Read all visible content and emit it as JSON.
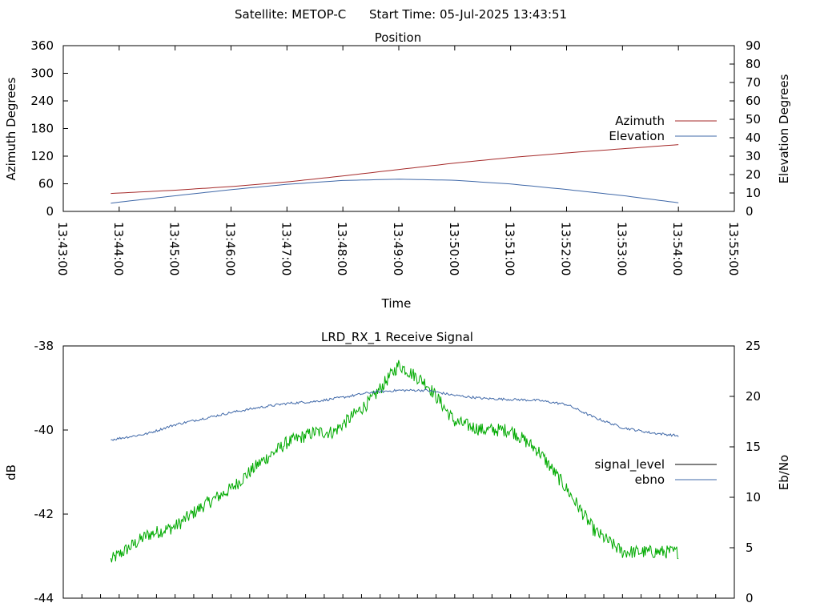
{
  "header": {
    "satellite": "Satellite: METOP-C",
    "start_time": "Start Time: 05-Jul-2025 13:43:51"
  },
  "colors": {
    "azimuth": "#a52a2a",
    "elevation": "#3f68a8",
    "signal_level": "#00aa00",
    "ebno": "#3f68a8",
    "legend_signal_level": "#000000"
  },
  "chart_data": [
    {
      "type": "line",
      "title": "Position",
      "xlabel": "Time",
      "ylabel": "Azimuth Degrees",
      "y2label": "Elevation Degrees",
      "xlim": [
        "13:43:00",
        "13:55:00"
      ],
      "ylim": [
        0,
        360
      ],
      "y2lim": [
        0,
        90
      ],
      "x_ticks": [
        "13:43:00",
        "13:44:00",
        "13:45:00",
        "13:46:00",
        "13:47:00",
        "13:48:00",
        "13:49:00",
        "13:50:00",
        "13:51:00",
        "13:52:00",
        "13:53:00",
        "13:54:00",
        "13:55:00"
      ],
      "y_ticks": [
        "0",
        "60",
        "120",
        "180",
        "240",
        "300",
        "360"
      ],
      "y2_ticks": [
        "0",
        "10",
        "20",
        "30",
        "40",
        "50",
        "60",
        "70",
        "80",
        "90"
      ],
      "legend_position": "right",
      "series": [
        {
          "name": "Azimuth",
          "axis": "y",
          "x": [
            "13:43:51",
            "13:45:00",
            "13:46:00",
            "13:47:00",
            "13:48:00",
            "13:49:00",
            "13:50:00",
            "13:51:00",
            "13:52:00",
            "13:53:00",
            "13:54:00"
          ],
          "values": [
            39,
            46,
            54,
            64,
            77,
            91,
            105,
            117,
            127,
            136,
            145
          ]
        },
        {
          "name": "Elevation",
          "axis": "y2",
          "x": [
            "13:43:51",
            "13:45:00",
            "13:46:00",
            "13:47:00",
            "13:48:00",
            "13:49:00",
            "13:50:00",
            "13:51:00",
            "13:52:00",
            "13:53:00",
            "13:54:00"
          ],
          "values": [
            4.5,
            8.5,
            11.8,
            14.7,
            16.8,
            17.5,
            16.9,
            14.9,
            11.9,
            8.6,
            4.7
          ]
        }
      ]
    },
    {
      "type": "line",
      "title": "LRD_RX_1 Receive Signal",
      "xlabel": "",
      "ylabel": "dB",
      "y2label": "Eb/No",
      "xlim": [
        "13:43:00",
        "13:55:00"
      ],
      "ylim": [
        -44,
        -38
      ],
      "y2lim": [
        0,
        25
      ],
      "y_ticks": [
        "-44",
        "-42",
        "-40",
        "-38"
      ],
      "y2_ticks": [
        "0",
        "5",
        "10",
        "15",
        "20",
        "25"
      ],
      "legend_position": "right",
      "series": [
        {
          "name": "signal_level",
          "axis": "y",
          "x": [
            "13:43:51",
            "13:44:30",
            "13:45:00",
            "13:45:30",
            "13:46:00",
            "13:46:30",
            "13:47:00",
            "13:47:30",
            "13:47:50",
            "13:48:30",
            "13:49:00",
            "13:49:30",
            "13:50:00",
            "13:50:30",
            "13:51:00",
            "13:51:30",
            "13:52:00",
            "13:52:30",
            "13:53:00",
            "13:53:30",
            "13:54:00"
          ],
          "values": [
            -43.1,
            -42.5,
            -42.3,
            -41.8,
            -41.4,
            -40.8,
            -40.3,
            -40.05,
            -40.05,
            -39.3,
            -38.45,
            -38.9,
            -39.8,
            -40.0,
            -40.0,
            -40.5,
            -41.4,
            -42.4,
            -42.9,
            -42.9,
            -42.9
          ]
        },
        {
          "name": "ebno",
          "axis": "y2",
          "x": [
            "13:43:51",
            "13:44:30",
            "13:45:00",
            "13:45:30",
            "13:46:00",
            "13:46:30",
            "13:47:00",
            "13:47:30",
            "13:48:00",
            "13:48:30",
            "13:49:00",
            "13:49:30",
            "13:50:00",
            "13:50:30",
            "13:51:00",
            "13:51:30",
            "13:52:00",
            "13:52:30",
            "13:53:00",
            "13:53:30",
            "13:54:00"
          ],
          "values": [
            15.7,
            16.3,
            17.2,
            17.8,
            18.4,
            18.9,
            19.3,
            19.5,
            19.9,
            20.4,
            20.6,
            20.6,
            20.1,
            19.8,
            19.7,
            19.6,
            19.2,
            17.9,
            16.9,
            16.4,
            16.1
          ]
        }
      ]
    }
  ]
}
